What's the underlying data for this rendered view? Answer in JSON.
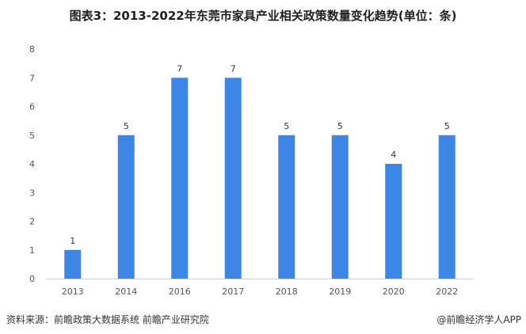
{
  "chart_data": {
    "type": "bar",
    "title": "图表3：2013-2022年东莞市家具产业相关政策数量变化趋势(单位：条)",
    "categories": [
      "2013",
      "2014",
      "2016",
      "2017",
      "2018",
      "2019",
      "2020",
      "2022"
    ],
    "values": [
      1,
      5,
      7,
      7,
      5,
      5,
      4,
      5
    ],
    "ylim": [
      0,
      8
    ],
    "yticks": [
      0,
      1,
      2,
      3,
      4,
      5,
      6,
      7,
      8
    ],
    "xlabel": "",
    "ylabel": "",
    "grid": false,
    "bar_color": "#3D86E6"
  },
  "footer": {
    "source": "资料来源：前瞻政策大数据系统 前瞻产业研究院",
    "credit": "@前瞻经济学人APP"
  }
}
